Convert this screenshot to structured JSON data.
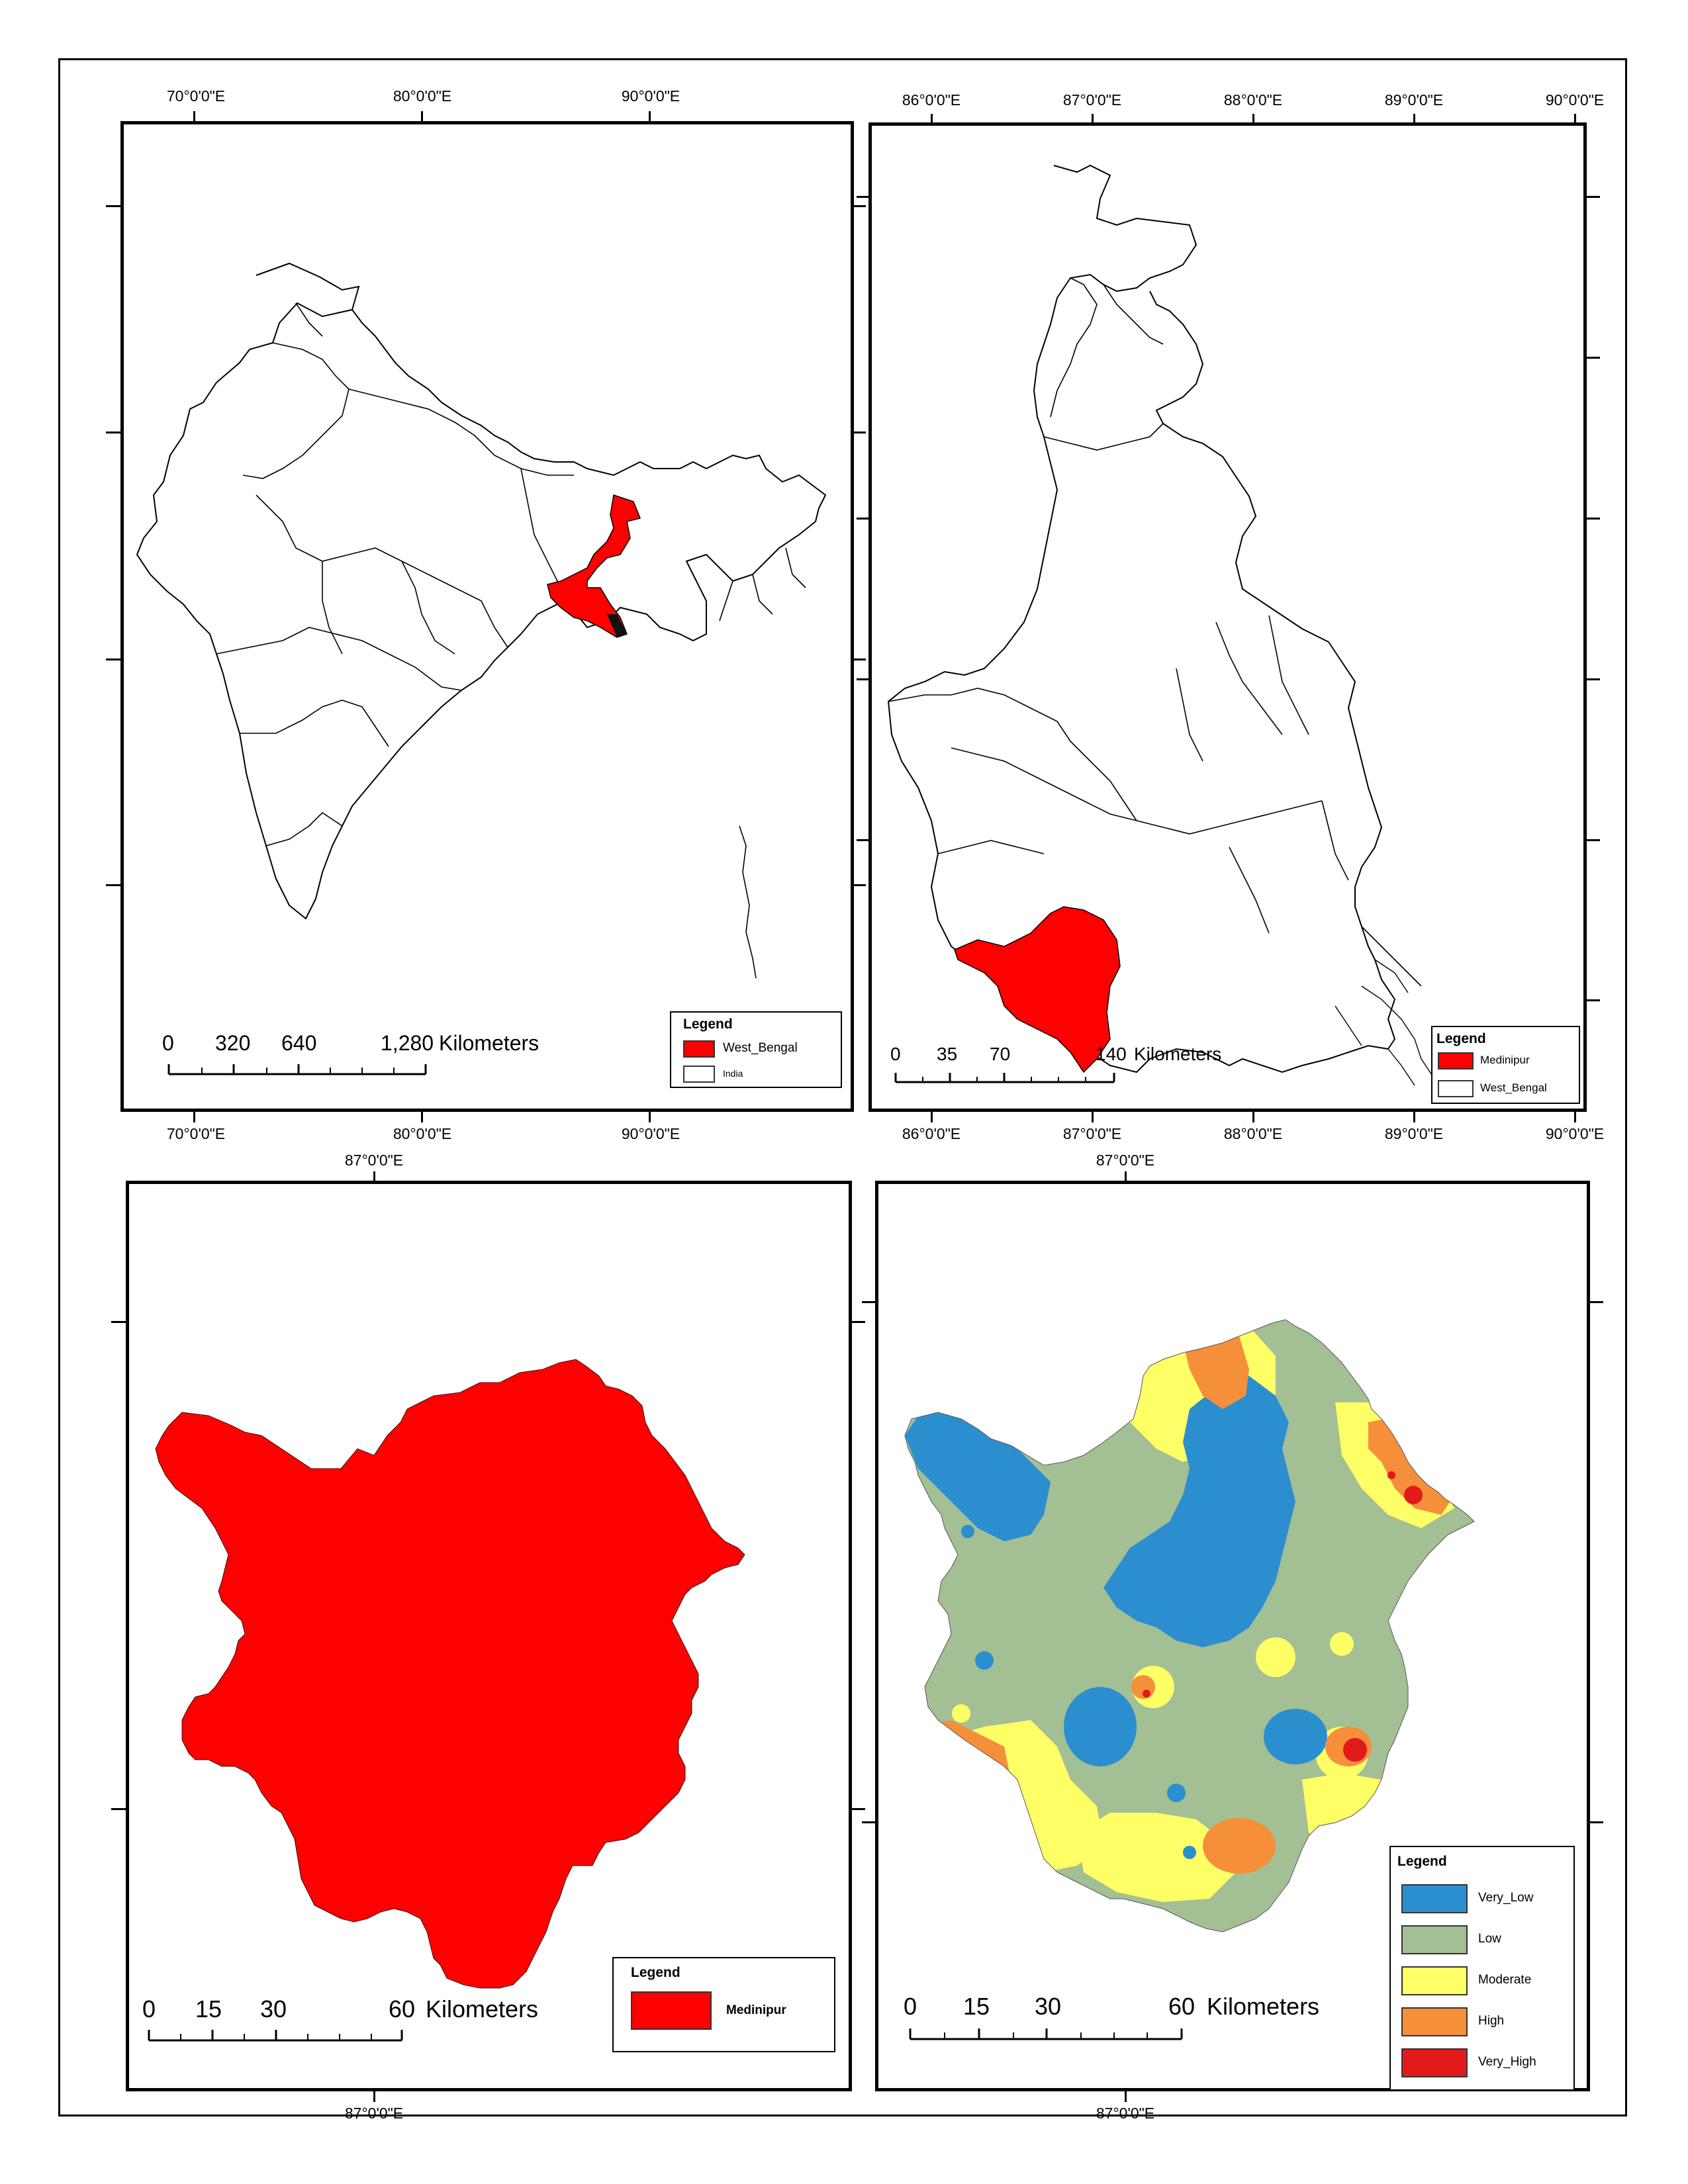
{
  "panels": {
    "india": {
      "top_labels": [
        "70°0'0\"E",
        "80°0'0\"E",
        "90°0'0\"E"
      ],
      "bottom_labels": [
        "70°0'0\"E",
        "80°0'0\"E",
        "90°0'0\"E"
      ],
      "scale": {
        "ticks": [
          "0",
          "320",
          "640",
          "1,280"
        ],
        "unit": "Kilometers"
      },
      "legend": {
        "title": "Legend",
        "items": [
          {
            "label": "West_Bengal",
            "color": "#ff0000"
          },
          {
            "label": "India",
            "color": "#ffffff"
          }
        ]
      }
    },
    "west_bengal": {
      "top_labels": [
        "86°0'0\"E",
        "87°0'0\"E",
        "88°0'0\"E",
        "89°0'0\"E",
        "90°0'0\"E"
      ],
      "bottom_labels": [
        "86°0'0\"E",
        "87°0'0\"E",
        "88°0'0\"E",
        "89°0'0\"E",
        "90°0'0\"E"
      ],
      "scale": {
        "ticks": [
          "0",
          "35",
          "70",
          "140"
        ],
        "unit": "Kilometers"
      },
      "legend": {
        "title": "Legend",
        "items": [
          {
            "label": "Medinipur",
            "color": "#ff0000"
          },
          {
            "label": "West_Bengal",
            "color": "#ffffff"
          }
        ]
      }
    },
    "medinipur": {
      "top_label": "87°0'0\"E",
      "bottom_label": "87°0'0\"E",
      "scale": {
        "ticks": [
          "0",
          "15",
          "30",
          "60"
        ],
        "unit": "Kilometers"
      },
      "legend": {
        "title": "Legend",
        "items": [
          {
            "label": "Medinipur",
            "color": "#ff0000"
          }
        ]
      }
    },
    "zonation": {
      "top_label": "87°0'0\"E",
      "bottom_label": "87°0'0\"E",
      "scale": {
        "ticks": [
          "0",
          "15",
          "30",
          "60"
        ],
        "unit": "Kilometers"
      },
      "legend": {
        "title": "Legend",
        "items": [
          {
            "label": "Very_Low",
            "color": "#2b8fcf"
          },
          {
            "label": "Low",
            "color": "#a3bf94"
          },
          {
            "label": "Moderate",
            "color": "#ffff66"
          },
          {
            "label": "High",
            "color": "#f58f3a"
          },
          {
            "label": "Very_High",
            "color": "#e31a1c"
          }
        ]
      }
    }
  }
}
